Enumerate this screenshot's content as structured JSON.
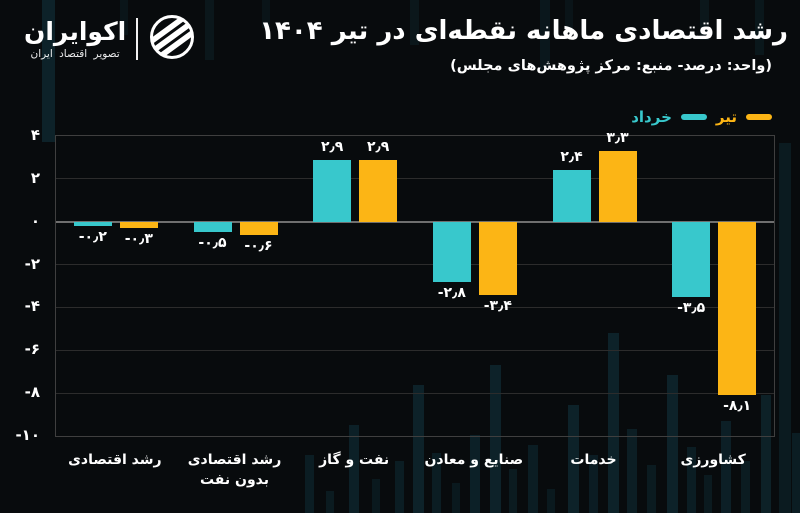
{
  "colors": {
    "background": "#080b0d",
    "khordad": "#38c8cc",
    "tir": "#fcb515",
    "grid": "#2c2c2c",
    "zero_line": "#6f6f6f",
    "text": "#ffffff",
    "pattern": "#123a46"
  },
  "logo": {
    "name": "اکوایران",
    "tagline": "تصویر اقتصاد ایران"
  },
  "header": {
    "title": "رشد اقتصادی ماهانه نقطه‌ای در تیر ۱۴۰۴",
    "subtitle": "(واحد: درصد- منبع: مرکز پژوهش‌های مجلس)"
  },
  "legend": {
    "items": [
      {
        "key": "khordad",
        "label": "خرداد",
        "color": "#38c8cc"
      },
      {
        "key": "tir",
        "label": "تیر",
        "color": "#fcb515"
      }
    ]
  },
  "chart_data": {
    "type": "bar",
    "title": "رشد اقتصادی ماهانه نقطه‌ای در تیر ۱۴۰۴",
    "unit_note": "واحد: درصد",
    "source_note": "منبع: مرکز پژوهش‌های مجلس",
    "categories": [
      {
        "name": "رشد اقتصادی",
        "lines": [
          "رشد اقتصادی"
        ]
      },
      {
        "name": "رشد اقتصادی بدون نفت",
        "lines": [
          "رشد اقتصادی",
          "بدون نفت"
        ]
      },
      {
        "name": "نفت و گاز",
        "lines": [
          "نفت و گاز"
        ]
      },
      {
        "name": "صنایع و معادن",
        "lines": [
          "صنایع و معادن"
        ]
      },
      {
        "name": "خدمات",
        "lines": [
          "خدمات"
        ]
      },
      {
        "name": "کشاورزی",
        "lines": [
          "کشاورزی"
        ]
      }
    ],
    "series": [
      {
        "key": "khordad",
        "name": "خرداد",
        "color": "#38c8cc",
        "values": [
          -0.2,
          -0.5,
          2.9,
          -2.8,
          2.4,
          -3.5
        ],
        "value_labels": [
          "-۰٫۲",
          "-۰٫۵",
          "۲٫۹",
          "-۲٫۸",
          "۲٫۴",
          "-۳٫۵"
        ]
      },
      {
        "key": "tir",
        "name": "تیر",
        "color": "#fcb515",
        "values": [
          -0.3,
          -0.6,
          2.9,
          -3.4,
          3.3,
          -8.1
        ],
        "value_labels": [
          "-۰٫۳",
          "-۰٫۶",
          "۲٫۹",
          "-۳٫۴",
          "۳٫۳",
          "-۸٫۱"
        ]
      }
    ],
    "ylim": [
      -10,
      4
    ],
    "yticks": [
      {
        "value": 4,
        "label": "۴"
      },
      {
        "value": 2,
        "label": "۲"
      },
      {
        "value": 0,
        "label": "۰"
      },
      {
        "value": -2,
        "label": "-۲"
      },
      {
        "value": -4,
        "label": "-۴"
      },
      {
        "value": -6,
        "label": "-۶"
      },
      {
        "value": -8,
        "label": "-۸"
      },
      {
        "value": -10,
        "label": "-۱۰"
      }
    ],
    "grid": true,
    "legend_position": "top-right"
  }
}
